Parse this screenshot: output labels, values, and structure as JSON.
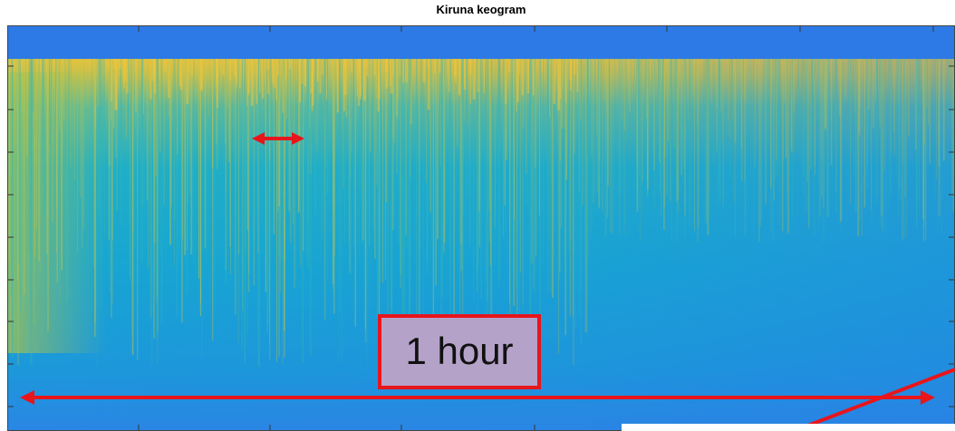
{
  "title": "Kiruna keogram",
  "annotation": "1 hour"
}
